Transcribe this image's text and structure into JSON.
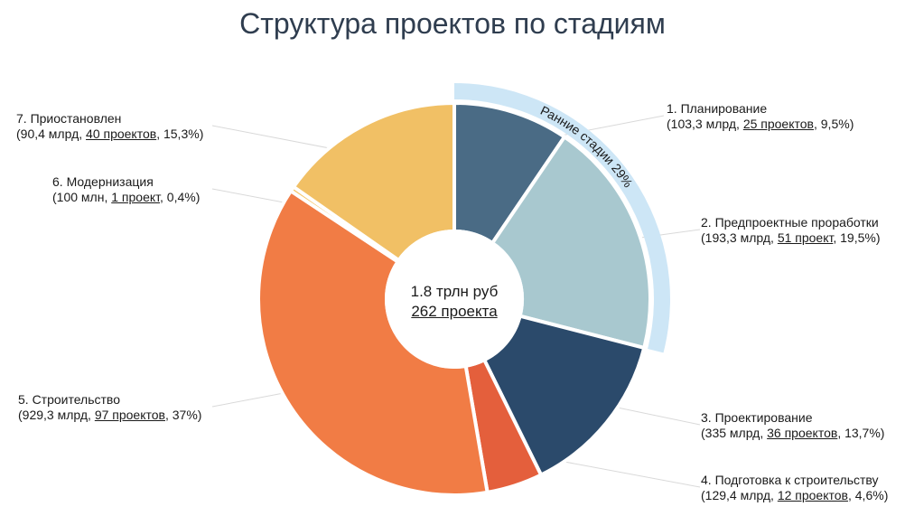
{
  "title": "Структура проектов по стадиям",
  "center": {
    "line1": "1.8 трлн руб",
    "line2": "262 проекта"
  },
  "colors": {
    "planning": "#4a6b85",
    "preproject": "#a8c8cf",
    "design": "#2b4a6b",
    "preparation": "#e45f3c",
    "construction": "#f17c45",
    "modernization": "#f5c66a",
    "suspended": "#f1c065",
    "early_band": "#cde6f6",
    "inner_band": "#cde6f6"
  },
  "chart_data": {
    "type": "pie",
    "title": "Структура проектов по стадиям",
    "total_label": "1.8 трлн руб",
    "total_projects_label": "262 проекта",
    "slices": [
      {
        "name": "1. Планирование",
        "value_label": "103,3 млрд",
        "projects": "25 проектов",
        "share": 9.5,
        "share_label": "9,5%"
      },
      {
        "name": "2. Предпроектные проработки",
        "value_label": "193,3 млрд",
        "projects": "51 проект",
        "share": 19.5,
        "share_label": "19,5%"
      },
      {
        "name": "3. Проектирование",
        "value_label": "335 млрд",
        "projects": "36 проектов",
        "share": 13.7,
        "share_label": "13,7%"
      },
      {
        "name": "4. Подготовка к строительству",
        "value_label": "129,4 млрд",
        "projects": "12 проектов",
        "share": 4.6,
        "share_label": "4,6%"
      },
      {
        "name": "5. Строительство",
        "value_label": "929,3 млрд",
        "projects": "97 проектов",
        "share": 37,
        "share_label": "37%"
      },
      {
        "name": "6. Модернизация",
        "value_label": "100 млн",
        "projects": "1 проект",
        "share": 0.4,
        "share_label": "0,4%"
      },
      {
        "name": "7. Приостановлен",
        "value_label": "90,4 млрд",
        "projects": "40 проектов",
        "share": 15.3,
        "share_label": "15,3%"
      }
    ],
    "group_band": {
      "label": "Ранние стадии 29%",
      "covers": [
        "1. Планирование",
        "2. Предпроектные проработки"
      ]
    }
  }
}
